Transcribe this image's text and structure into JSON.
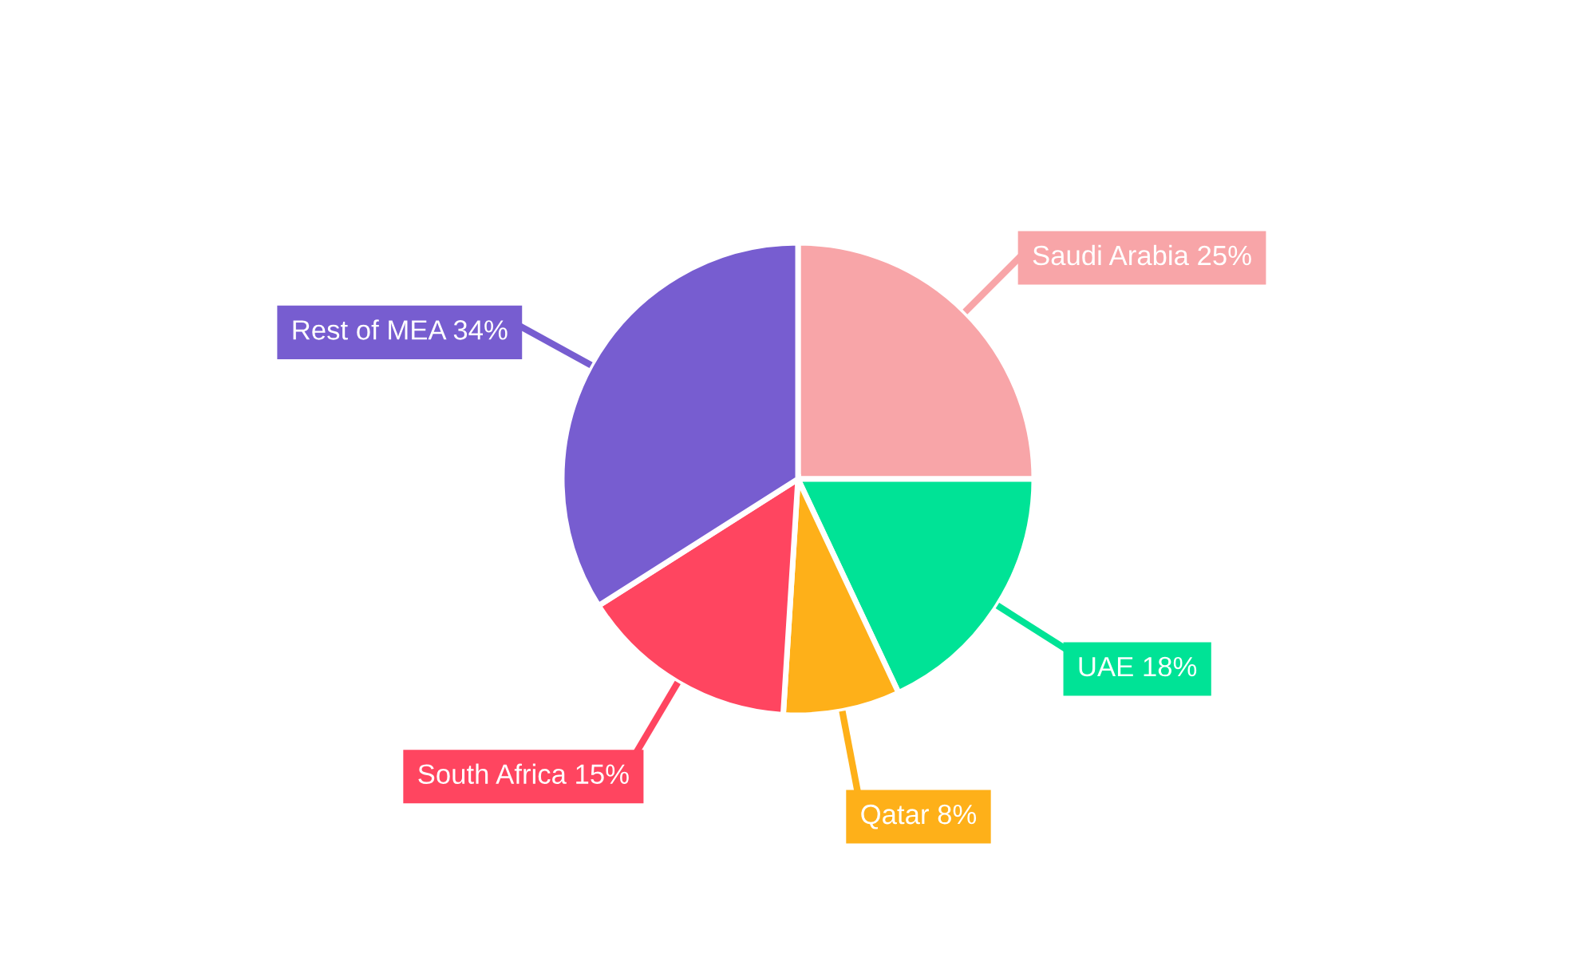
{
  "chart_data": {
    "type": "pie",
    "categories": [
      "Saudi Arabia",
      "UAE",
      "Qatar",
      "South Africa",
      "Rest of MEA"
    ],
    "values": [
      25,
      18,
      8,
      15,
      34
    ],
    "value_labels": [
      "25%",
      "18%",
      "8%",
      "15%",
      "34%"
    ],
    "colors": [
      "#f8a5a8",
      "#00e396",
      "#feb019",
      "#ff4560",
      "#775dd0"
    ],
    "legend": false
  }
}
